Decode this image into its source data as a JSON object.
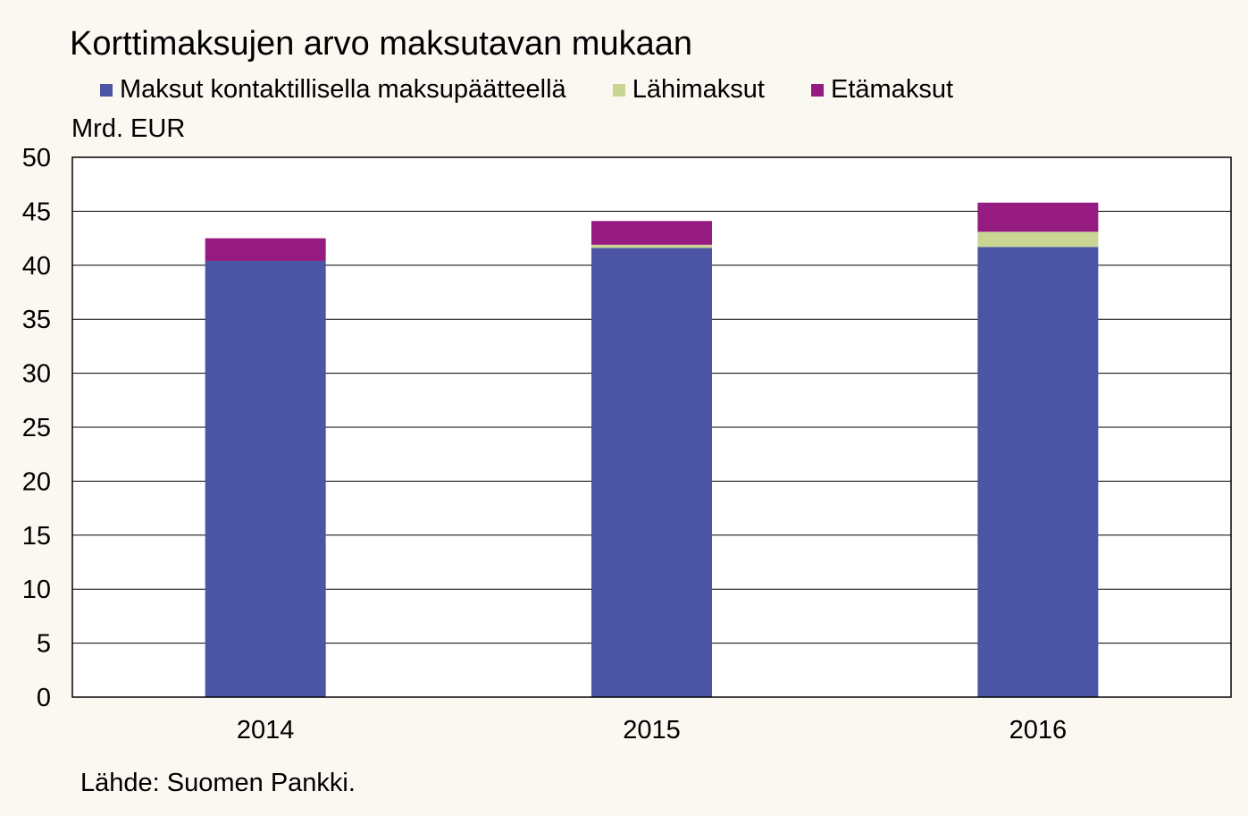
{
  "chart_data": {
    "type": "bar",
    "stacked": true,
    "title": "Korttimaksujen arvo maksutavan mukaan",
    "ylabel": "Mrd. EUR",
    "source": "Lähde: Suomen Pankki.",
    "categories": [
      "2014",
      "2015",
      "2016"
    ],
    "series": [
      {
        "name": "Maksut kontaktillisella maksupäätteellä",
        "color": "#4B55A3",
        "values": [
          40.4,
          41.6,
          41.7
        ]
      },
      {
        "name": "Lähimaksut",
        "color": "#C9D693",
        "values": [
          0.0,
          0.3,
          1.4
        ]
      },
      {
        "name": "Etämaksut",
        "color": "#951B81",
        "values": [
          2.1,
          2.2,
          2.7
        ]
      }
    ],
    "ylim": [
      0,
      50
    ],
    "yticks": [
      "0",
      "5",
      "10",
      "15",
      "20",
      "25",
      "30",
      "35",
      "40",
      "45",
      "50"
    ],
    "grid": true,
    "legend_position": "top-left"
  }
}
